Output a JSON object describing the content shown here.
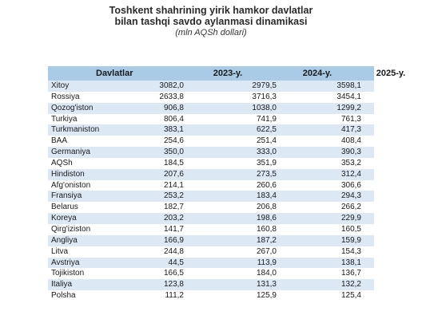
{
  "title": {
    "line1": "Toshkent shahrining yirik hamkor davlatlar",
    "line2": "bilan tashqi savdo aylanmasi dinamikasi",
    "unit": "(mln AQSh dollari)"
  },
  "table": {
    "headers": [
      "Davlatlar",
      "2023-y.",
      "2024-y.",
      "2025-y."
    ],
    "rows": [
      [
        "Xitoy",
        "3082,0",
        "2979,5",
        "3598,1"
      ],
      [
        "Rossiya",
        "2633,8",
        "3716,3",
        "3454,1"
      ],
      [
        "Qozog'iston",
        "906,8",
        "1038,0",
        "1299,2"
      ],
      [
        "Turkiya",
        "806,4",
        "741,9",
        "761,3"
      ],
      [
        "Turkmaniston",
        "383,1",
        "622,5",
        "417,3"
      ],
      [
        "BAA",
        "254,6",
        "251,4",
        "408,4"
      ],
      [
        "Germaniya",
        "350,0",
        "333,0",
        "390,3"
      ],
      [
        "AQSh",
        "184,5",
        "351,9",
        "353,2"
      ],
      [
        "Hindiston",
        "207,6",
        "273,5",
        "312,4"
      ],
      [
        "Afg'oniston",
        "214,1",
        "260,6",
        "306,6"
      ],
      [
        "Fransiya",
        "253,2",
        "183,4",
        "294,3"
      ],
      [
        "Belarus",
        "182,7",
        "206,8",
        "266,2"
      ],
      [
        "Koreya",
        "203,2",
        "198,6",
        "229,9"
      ],
      [
        "Qirg'iziston",
        "141,7",
        "160,8",
        "160,5"
      ],
      [
        "Angliya",
        "166,9",
        "187,2",
        "159,9"
      ],
      [
        "Litva",
        "244,8",
        "267,0",
        "154,3"
      ],
      [
        "Avstriya",
        "44,5",
        "113,9",
        "138,1"
      ],
      [
        "Tojikiston",
        "166,5",
        "184,0",
        "136,7"
      ],
      [
        "Italiya",
        "123,8",
        "131,3",
        "132,2"
      ],
      [
        "Polsha",
        "111,2",
        "125,9",
        "125,4"
      ]
    ]
  },
  "colors": {
    "header_bg": "#a9cbe6",
    "stripe_bg": "#dce8f4"
  }
}
